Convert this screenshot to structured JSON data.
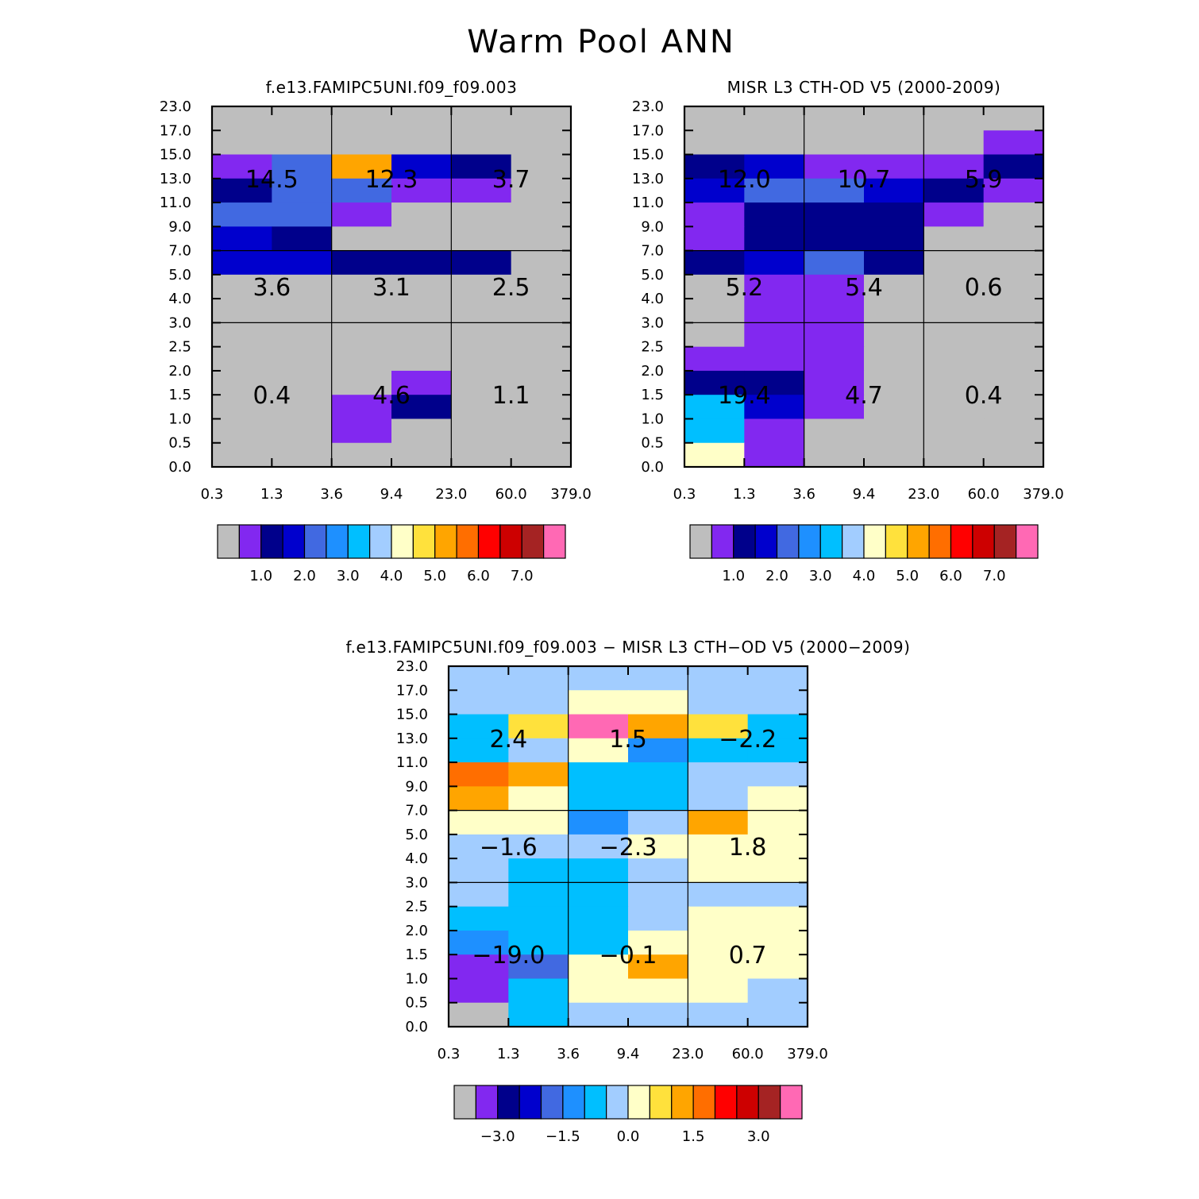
{
  "title": "Warm Pool ANN",
  "palette": {
    "gray": "#bebebe",
    "purple": "#8228f0",
    "navy": "#00008b",
    "blue": "#0000cd",
    "royal": "#4169e1",
    "dodger": "#1e90ff",
    "sky": "#00bfff",
    "lightsky": "#a2cdff",
    "cream": "#ffffc8",
    "gold": "#ffe13c",
    "orange": "#ffa500",
    "darkorange": "#ff6e00",
    "red": "#ff0000",
    "crimson": "#cd0000",
    "brown": "#a52323",
    "pink": "#ff69b4"
  },
  "chart_data": [
    {
      "type": "heatmap",
      "title": "f.e13.FAMIPC5UNI.f09_f09.003",
      "xticks": [
        "0.3",
        "1.3",
        "3.6",
        "9.4",
        "23.0",
        "60.0",
        "379.0"
      ],
      "yticks": [
        "0.0",
        "0.5",
        "1.0",
        "1.5",
        "2.0",
        "2.5",
        "3.0",
        "4.0",
        "5.0",
        "7.0",
        "9.0",
        "11.0",
        "13.0",
        "15.0",
        "17.0",
        "23.0"
      ],
      "cells": [
        [
          "gray",
          "gray",
          "gray",
          "gray",
          "gray",
          "gray"
        ],
        [
          "gray",
          "gray",
          "gray",
          "gray",
          "gray",
          "gray"
        ],
        [
          "purple",
          "royal",
          "orange",
          "blue",
          "navy",
          "gray"
        ],
        [
          "navy",
          "royal",
          "royal",
          "purple",
          "purple",
          "gray"
        ],
        [
          "royal",
          "royal",
          "purple",
          "gray",
          "gray",
          "gray"
        ],
        [
          "blue",
          "navy",
          "gray",
          "gray",
          "gray",
          "gray"
        ],
        [
          "blue",
          "blue",
          "navy",
          "navy",
          "navy",
          "gray"
        ],
        [
          "gray",
          "gray",
          "gray",
          "gray",
          "gray",
          "gray"
        ],
        [
          "gray",
          "gray",
          "gray",
          "gray",
          "gray",
          "gray"
        ],
        [
          "gray",
          "gray",
          "gray",
          "gray",
          "gray",
          "gray"
        ],
        [
          "gray",
          "gray",
          "gray",
          "gray",
          "gray",
          "gray"
        ],
        [
          "gray",
          "gray",
          "gray",
          "purple",
          "gray",
          "gray"
        ],
        [
          "gray",
          "gray",
          "purple",
          "navy",
          "gray",
          "gray"
        ],
        [
          "gray",
          "gray",
          "purple",
          "gray",
          "gray",
          "gray"
        ],
        [
          "gray",
          "gray",
          "gray",
          "gray",
          "gray",
          "gray"
        ]
      ],
      "labels": [
        [
          "14.5",
          "12.3",
          "3.7"
        ],
        [
          "3.6",
          "3.1",
          "2.5"
        ],
        [
          "0.4",
          "4.6",
          "1.1"
        ]
      ],
      "colorbar": {
        "colors": [
          "gray",
          "purple",
          "navy",
          "blue",
          "royal",
          "dodger",
          "sky",
          "lightsky",
          "cream",
          "gold",
          "orange",
          "darkorange",
          "red",
          "crimson",
          "brown",
          "pink"
        ],
        "labels": [
          "1.0",
          "2.0",
          "3.0",
          "4.0",
          "5.0",
          "6.0",
          "7.0"
        ],
        "label_edges": [
          2,
          4,
          6,
          8,
          10,
          12,
          14
        ]
      }
    },
    {
      "type": "heatmap",
      "title": "MISR L3 CTH-OD V5 (2000-2009)",
      "xticks": [
        "0.3",
        "1.3",
        "3.6",
        "9.4",
        "23.0",
        "60.0",
        "379.0"
      ],
      "yticks": [
        "0.0",
        "0.5",
        "1.0",
        "1.5",
        "2.0",
        "2.5",
        "3.0",
        "4.0",
        "5.0",
        "7.0",
        "9.0",
        "11.0",
        "13.0",
        "15.0",
        "17.0",
        "23.0"
      ],
      "cells": [
        [
          "gray",
          "gray",
          "gray",
          "gray",
          "gray",
          "gray"
        ],
        [
          "gray",
          "gray",
          "gray",
          "gray",
          "gray",
          "purple"
        ],
        [
          "navy",
          "blue",
          "purple",
          "purple",
          "purple",
          "navy"
        ],
        [
          "blue",
          "royal",
          "royal",
          "blue",
          "navy",
          "purple"
        ],
        [
          "purple",
          "navy",
          "navy",
          "navy",
          "purple",
          "gray"
        ],
        [
          "purple",
          "navy",
          "navy",
          "navy",
          "gray",
          "gray"
        ],
        [
          "navy",
          "blue",
          "royal",
          "navy",
          "gray",
          "gray"
        ],
        [
          "gray",
          "purple",
          "purple",
          "gray",
          "gray",
          "gray"
        ],
        [
          "gray",
          "purple",
          "purple",
          "gray",
          "gray",
          "gray"
        ],
        [
          "gray",
          "purple",
          "purple",
          "gray",
          "gray",
          "gray"
        ],
        [
          "purple",
          "purple",
          "purple",
          "gray",
          "gray",
          "gray"
        ],
        [
          "navy",
          "navy",
          "purple",
          "gray",
          "gray",
          "gray"
        ],
        [
          "sky",
          "blue",
          "purple",
          "gray",
          "gray",
          "gray"
        ],
        [
          "sky",
          "purple",
          "gray",
          "gray",
          "gray",
          "gray"
        ],
        [
          "cream",
          "purple",
          "gray",
          "gray",
          "gray",
          "gray"
        ]
      ],
      "labels": [
        [
          "12.0",
          "10.7",
          "5.9"
        ],
        [
          "5.2",
          "5.4",
          "0.6"
        ],
        [
          "19.4",
          "4.7",
          "0.4"
        ]
      ],
      "colorbar": {
        "colors": [
          "gray",
          "purple",
          "navy",
          "blue",
          "royal",
          "dodger",
          "sky",
          "lightsky",
          "cream",
          "gold",
          "orange",
          "darkorange",
          "red",
          "crimson",
          "brown",
          "pink"
        ],
        "labels": [
          "1.0",
          "2.0",
          "3.0",
          "4.0",
          "5.0",
          "6.0",
          "7.0"
        ],
        "label_edges": [
          2,
          4,
          6,
          8,
          10,
          12,
          14
        ]
      }
    },
    {
      "type": "heatmap",
      "title": "f.e13.FAMIPC5UNI.f09_f09.003 − MISR L3 CTH−OD V5 (2000−2009)",
      "xticks": [
        "0.3",
        "1.3",
        "3.6",
        "9.4",
        "23.0",
        "60.0",
        "379.0"
      ],
      "yticks": [
        "0.0",
        "0.5",
        "1.0",
        "1.5",
        "2.0",
        "2.5",
        "3.0",
        "4.0",
        "5.0",
        "7.0",
        "9.0",
        "11.0",
        "13.0",
        "15.0",
        "17.0",
        "23.0"
      ],
      "cells": [
        [
          "lightsky",
          "lightsky",
          "lightsky",
          "lightsky",
          "lightsky",
          "lightsky"
        ],
        [
          "lightsky",
          "lightsky",
          "cream",
          "cream",
          "lightsky",
          "lightsky"
        ],
        [
          "sky",
          "gold",
          "pink",
          "orange",
          "gold",
          "sky"
        ],
        [
          "sky",
          "lightsky",
          "cream",
          "dodger",
          "sky",
          "sky"
        ],
        [
          "darkorange",
          "orange",
          "sky",
          "sky",
          "lightsky",
          "lightsky"
        ],
        [
          "orange",
          "cream",
          "sky",
          "sky",
          "lightsky",
          "cream"
        ],
        [
          "cream",
          "cream",
          "dodger",
          "lightsky",
          "orange",
          "cream"
        ],
        [
          "lightsky",
          "lightsky",
          "lightsky",
          "cream",
          "cream",
          "cream"
        ],
        [
          "lightsky",
          "sky",
          "sky",
          "lightsky",
          "cream",
          "cream"
        ],
        [
          "lightsky",
          "sky",
          "sky",
          "lightsky",
          "lightsky",
          "lightsky"
        ],
        [
          "sky",
          "sky",
          "sky",
          "lightsky",
          "cream",
          "cream"
        ],
        [
          "dodger",
          "sky",
          "sky",
          "cream",
          "cream",
          "cream"
        ],
        [
          "purple",
          "royal",
          "cream",
          "orange",
          "cream",
          "cream"
        ],
        [
          "purple",
          "sky",
          "cream",
          "cream",
          "cream",
          "lightsky"
        ],
        [
          "gray",
          "sky",
          "lightsky",
          "lightsky",
          "lightsky",
          "lightsky"
        ]
      ],
      "labels": [
        [
          "2.4",
          "1.5",
          "−2.2"
        ],
        [
          "−1.6",
          "−2.3",
          "1.8"
        ],
        [
          "−19.0",
          "−0.1",
          "0.7"
        ]
      ],
      "colorbar": {
        "colors": [
          "gray",
          "purple",
          "navy",
          "blue",
          "royal",
          "dodger",
          "sky",
          "lightsky",
          "cream",
          "gold",
          "orange",
          "darkorange",
          "red",
          "crimson",
          "brown",
          "pink"
        ],
        "labels": [
          "−3.0",
          "−1.5",
          "0.0",
          "1.5",
          "3.0"
        ],
        "label_edges": [
          2,
          5,
          8,
          11,
          14
        ]
      }
    }
  ]
}
